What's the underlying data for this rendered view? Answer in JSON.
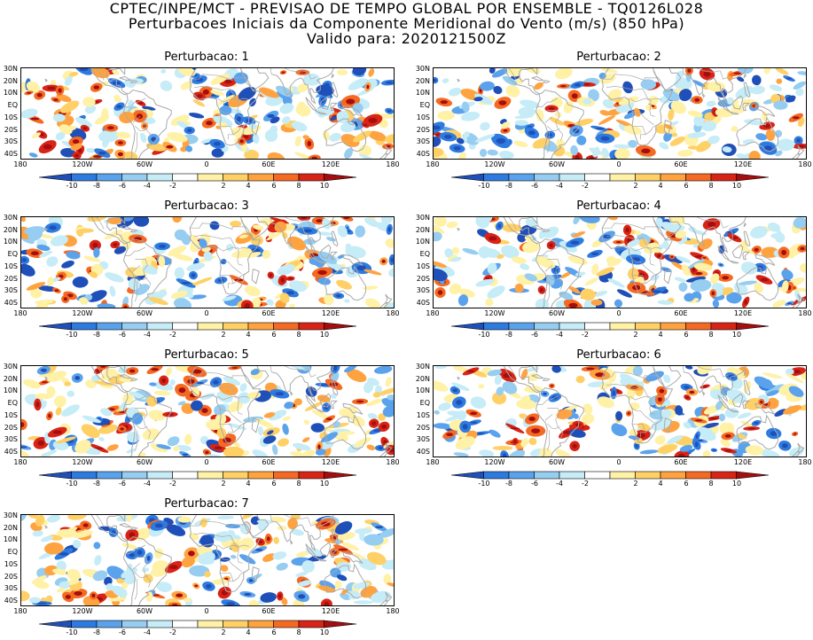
{
  "header": {
    "line1": "CPTEC/INPE/MCT - PREVISAO DE TEMPO GLOBAL POR ENSEMBLE - TQ0126L028",
    "line2": "Perturbacoes Iniciais da Componente Meridional do Vento (m/s) (850 hPa)",
    "line3": "Valido para: 2020121500Z"
  },
  "panels": [
    {
      "title": "Perturbacao: 1"
    },
    {
      "title": "Perturbacao: 2"
    },
    {
      "title": "Perturbacao: 3"
    },
    {
      "title": "Perturbacao: 4"
    },
    {
      "title": "Perturbacao: 5"
    },
    {
      "title": "Perturbacao: 6"
    },
    {
      "title": "Perturbacao: 7"
    }
  ],
  "lat_labels": [
    "30N",
    "20N",
    "10N",
    "EQ",
    "10S",
    "20S",
    "30S",
    "40S"
  ],
  "lon_labels": [
    "180",
    "120W",
    "60W",
    "0",
    "60E",
    "120E",
    "180"
  ],
  "colorbar": {
    "labels": [
      "-10",
      "-8",
      "-6",
      "-4",
      "-2",
      "2",
      "4",
      "6",
      "8",
      "10"
    ],
    "colors": [
      "#1f4fb8",
      "#2e7be0",
      "#5aa2ec",
      "#96cdf0",
      "#c6ecf7",
      "#ffffff",
      "#fff1a6",
      "#ffd066",
      "#ffa340",
      "#f56a23",
      "#d82416",
      "#a50e0e"
    ]
  },
  "coast_color": "#a9a9a9"
}
